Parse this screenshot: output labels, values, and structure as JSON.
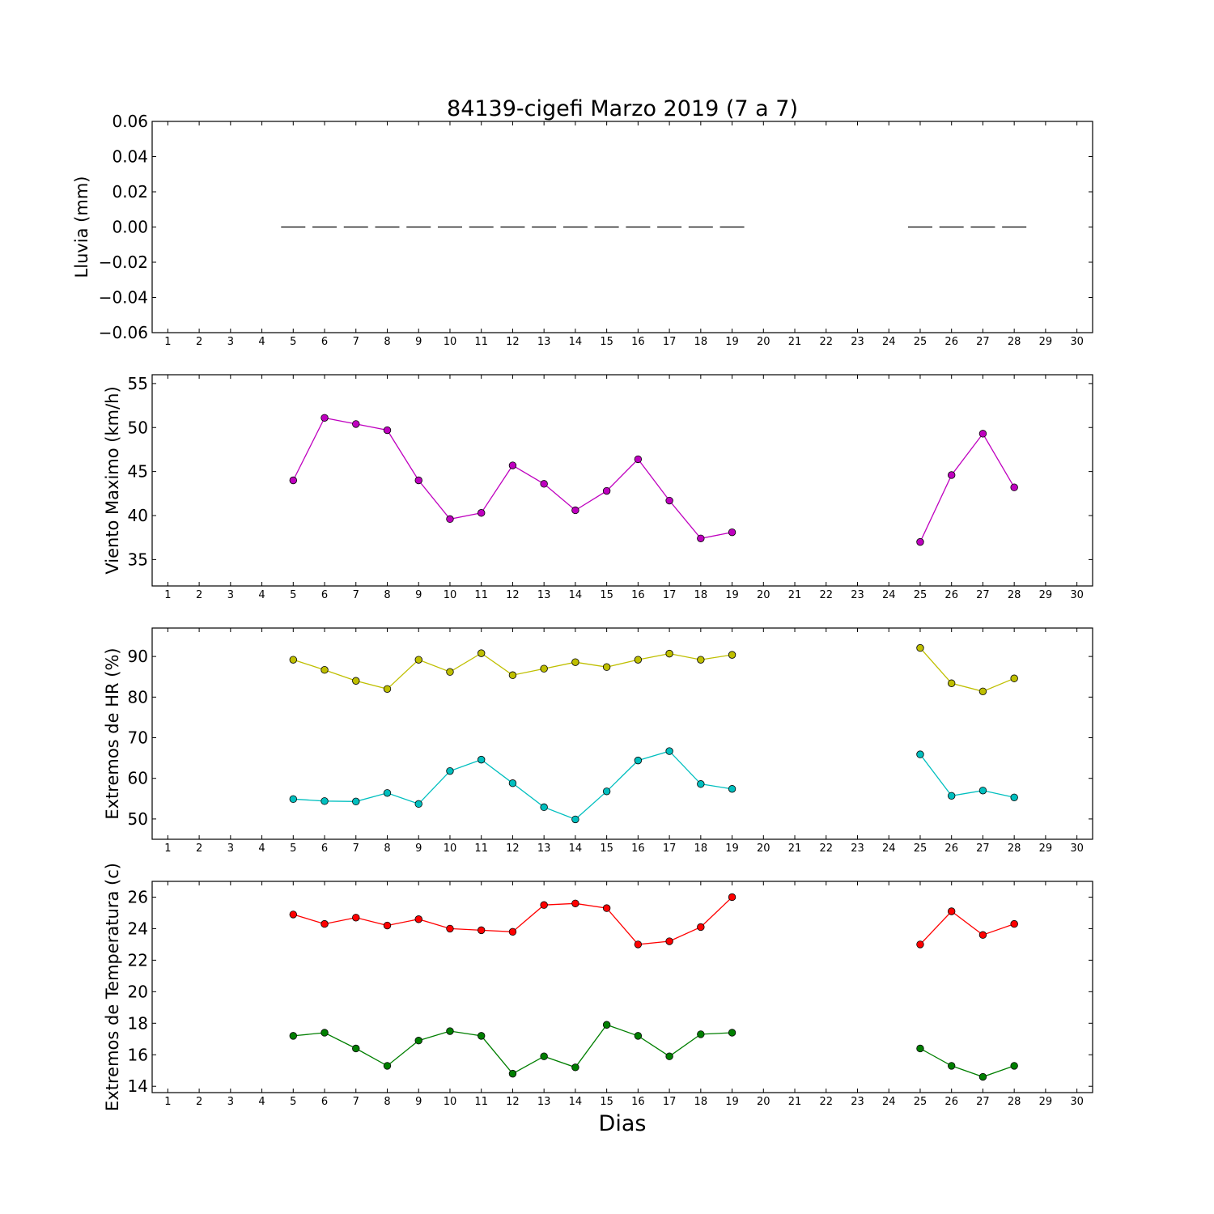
{
  "figure": {
    "title": "84139-cigefi Marzo 2019  (7 a 7)",
    "xlabel": "Dias"
  },
  "chart_data": [
    {
      "type": "bar",
      "name": "lluvia",
      "ylabel": "Lluvia (mm)",
      "xlim": [
        0.5,
        30.5
      ],
      "ylim": [
        -0.06,
        0.06
      ],
      "yticks": [
        -0.06,
        -0.04,
        -0.02,
        0.0,
        0.02,
        0.04,
        0.06
      ],
      "ytick_labels": [
        "−0.06",
        "−0.04",
        "−0.02",
        "0.00",
        "0.02",
        "0.04",
        "0.06"
      ],
      "xticks": [
        1,
        2,
        3,
        4,
        5,
        6,
        7,
        8,
        9,
        10,
        11,
        12,
        13,
        14,
        15,
        16,
        17,
        18,
        19,
        20,
        21,
        22,
        23,
        24,
        25,
        26,
        27,
        28,
        29,
        30
      ],
      "series": [
        {
          "color": "#000000",
          "x": [
            5,
            6,
            7,
            8,
            9,
            10,
            11,
            12,
            13,
            14,
            15,
            16,
            17,
            18,
            19,
            25,
            26,
            27,
            28
          ],
          "values": [
            0,
            0,
            0,
            0,
            0,
            0,
            0,
            0,
            0,
            0,
            0,
            0,
            0,
            0,
            0,
            0,
            0,
            0,
            0
          ]
        }
      ]
    },
    {
      "type": "line",
      "name": "viento",
      "ylabel": "Viento Maximo (km/h)",
      "xlim": [
        0.5,
        30.5
      ],
      "ylim": [
        32,
        56
      ],
      "yticks": [
        35,
        40,
        45,
        50,
        55
      ],
      "ytick_labels": [
        "35",
        "40",
        "45",
        "50",
        "55"
      ],
      "xticks": [
        1,
        2,
        3,
        4,
        5,
        6,
        7,
        8,
        9,
        10,
        11,
        12,
        13,
        14,
        15,
        16,
        17,
        18,
        19,
        20,
        21,
        22,
        23,
        24,
        25,
        26,
        27,
        28,
        29,
        30
      ],
      "series": [
        {
          "color": "#bf00bf",
          "segments": [
            {
              "x": [
                5,
                6,
                7,
                8,
                9,
                10,
                11,
                12,
                13,
                14,
                15,
                16,
                17,
                18,
                19
              ],
              "values": [
                44.0,
                51.1,
                50.4,
                49.7,
                44.0,
                39.6,
                40.3,
                45.7,
                43.6,
                40.6,
                42.8,
                46.4,
                41.7,
                37.4,
                38.1
              ]
            },
            {
              "x": [
                25,
                26,
                27,
                28
              ],
              "values": [
                37.0,
                44.6,
                49.3,
                43.2
              ]
            }
          ]
        }
      ]
    },
    {
      "type": "line",
      "name": "humedad",
      "ylabel": "Extremos de HR (%)",
      "xlim": [
        0.5,
        30.5
      ],
      "ylim": [
        45,
        97
      ],
      "yticks": [
        50,
        60,
        70,
        80,
        90
      ],
      "ytick_labels": [
        "50",
        "60",
        "70",
        "80",
        "90"
      ],
      "xticks": [
        1,
        2,
        3,
        4,
        5,
        6,
        7,
        8,
        9,
        10,
        11,
        12,
        13,
        14,
        15,
        16,
        17,
        18,
        19,
        20,
        21,
        22,
        23,
        24,
        25,
        26,
        27,
        28,
        29,
        30
      ],
      "series": [
        {
          "color": "#bfbf00",
          "segments": [
            {
              "x": [
                5,
                6,
                7,
                8,
                9,
                10,
                11,
                12,
                13,
                14,
                15,
                16,
                17,
                18,
                19
              ],
              "values": [
                89.2,
                86.7,
                84.0,
                82.0,
                89.2,
                86.2,
                90.8,
                85.4,
                87.0,
                88.6,
                87.4,
                89.2,
                90.7,
                89.2,
                90.4
              ]
            },
            {
              "x": [
                25,
                26,
                27,
                28
              ],
              "values": [
                92.1,
                83.4,
                81.4,
                84.6
              ]
            }
          ]
        },
        {
          "color": "#00bfbf",
          "segments": [
            {
              "x": [
                5,
                6,
                7,
                8,
                9,
                10,
                11,
                12,
                13,
                14,
                15,
                16,
                17,
                18,
                19
              ],
              "values": [
                54.9,
                54.4,
                54.3,
                56.4,
                53.7,
                61.8,
                64.6,
                58.8,
                52.9,
                49.9,
                56.8,
                64.4,
                66.7,
                58.6,
                57.4
              ]
            },
            {
              "x": [
                25,
                26,
                27,
                28
              ],
              "values": [
                65.9,
                55.7,
                57.0,
                55.3
              ]
            }
          ]
        }
      ]
    },
    {
      "type": "line",
      "name": "temperatura",
      "ylabel": "Extremos de Temperatura (c)",
      "xlim": [
        0.5,
        30.5
      ],
      "ylim": [
        13.6,
        27.0
      ],
      "yticks": [
        14,
        16,
        18,
        20,
        22,
        24,
        26
      ],
      "ytick_labels": [
        "14",
        "16",
        "18",
        "20",
        "22",
        "24",
        "26"
      ],
      "xticks": [
        1,
        2,
        3,
        4,
        5,
        6,
        7,
        8,
        9,
        10,
        11,
        12,
        13,
        14,
        15,
        16,
        17,
        18,
        19,
        20,
        21,
        22,
        23,
        24,
        25,
        26,
        27,
        28,
        29,
        30
      ],
      "series": [
        {
          "color": "#ff0000",
          "segments": [
            {
              "x": [
                5,
                6,
                7,
                8,
                9,
                10,
                11,
                12,
                13,
                14,
                15,
                16,
                17,
                18,
                19
              ],
              "values": [
                24.9,
                24.3,
                24.7,
                24.2,
                24.6,
                24.0,
                23.9,
                23.8,
                25.5,
                25.6,
                25.3,
                23.0,
                23.2,
                24.1,
                26.0
              ]
            },
            {
              "x": [
                25,
                26,
                27,
                28
              ],
              "values": [
                23.0,
                25.1,
                23.6,
                24.3
              ]
            }
          ]
        },
        {
          "color": "#007f00",
          "segments": [
            {
              "x": [
                5,
                6,
                7,
                8,
                9,
                10,
                11,
                12,
                13,
                14,
                15,
                16,
                17,
                18,
                19
              ],
              "values": [
                17.2,
                17.4,
                16.4,
                15.3,
                16.9,
                17.5,
                17.2,
                14.8,
                15.9,
                15.2,
                17.9,
                17.2,
                15.9,
                17.3,
                17.4
              ]
            },
            {
              "x": [
                25,
                26,
                27,
                28
              ],
              "values": [
                16.4,
                15.3,
                14.6,
                15.3
              ]
            }
          ]
        }
      ]
    }
  ]
}
